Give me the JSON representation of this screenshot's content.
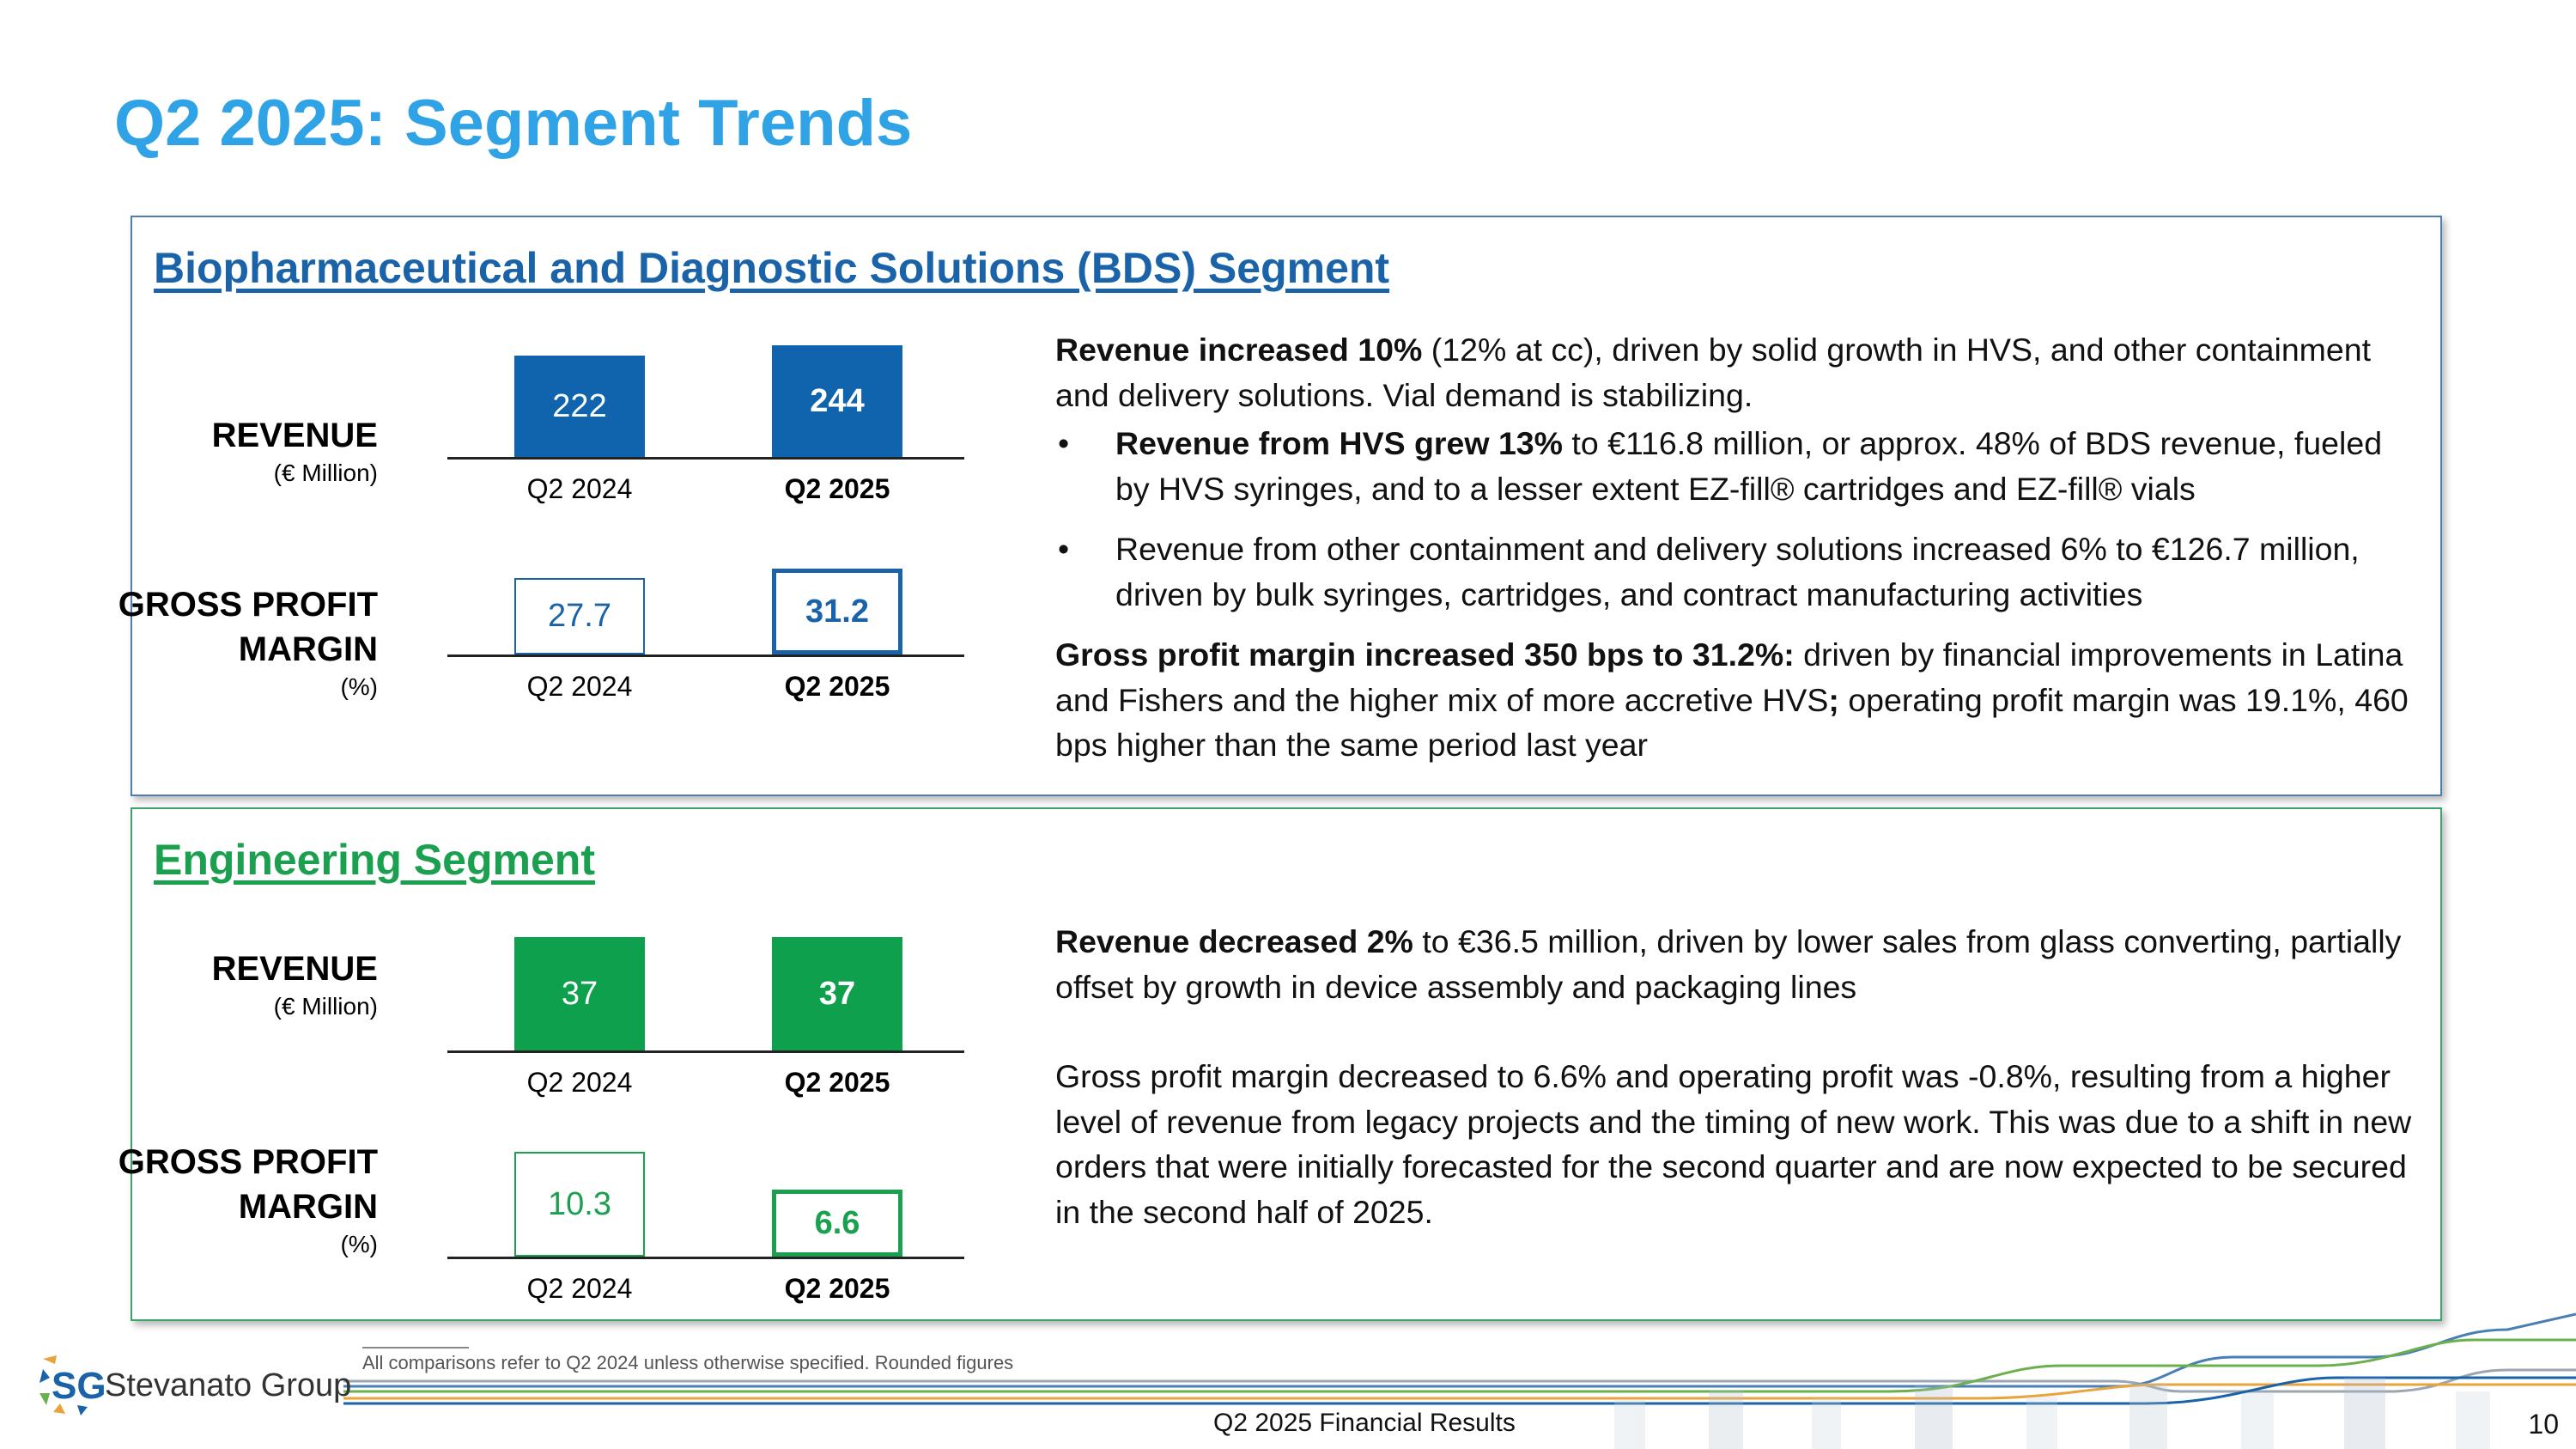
{
  "title": "Q2 2025: Segment Trends",
  "colors": {
    "title_blue": "#2fa3e6",
    "bds_blue": "#0f64ad",
    "eng_green": "#0fa04e"
  },
  "bds": {
    "title": "Biopharmaceutical and Diagnostic Solutions (BDS) Segment",
    "revenue_label": "REVENUE",
    "revenue_unit": "(€ Million)",
    "gpm_label_1": "GROSS PROFIT",
    "gpm_label_2": "MARGIN",
    "gpm_unit": "(%)",
    "revenue_chart": {
      "categories": [
        "Q2 2024",
        "Q2 2025"
      ],
      "values": [
        "222",
        "244"
      ],
      "scale_max": 244
    },
    "gpm_chart": {
      "categories": [
        "Q2 2024",
        "Q2 2025"
      ],
      "values": [
        "27.7",
        "31.2"
      ],
      "scale_max": 31.2
    },
    "text": {
      "p1_bold": "Revenue increased 10%",
      "p1_rest": " (12% at cc), driven by solid growth in HVS, and other containment and delivery solutions. Vial demand is stabilizing.",
      "bullet_char": "•",
      "b1_bold": "Revenue from HVS grew 13%",
      "b1_rest": " to €116.8 million, or approx. 48% of BDS revenue, fueled by HVS syringes, and to a lesser extent EZ-fill® cartridges and EZ-fill® vials",
      "b2": "Revenue from other containment and delivery solutions increased 6% to €126.7 million, driven by bulk syringes, cartridges, and contract manufacturing activities",
      "p2_bold": "Gross profit margin increased 350 bps to 31.2%:",
      "p2_mid": " driven by financial improvements in Latina and Fishers and the higher mix of more accretive HVS",
      "p2_semicolon": ";",
      "p2_rest": " operating profit margin was 19.1%, 460 bps higher than the same period last year"
    }
  },
  "eng": {
    "title": "Engineering Segment",
    "revenue_label": "REVENUE",
    "revenue_unit": "(€ Million)",
    "gpm_label_1": "GROSS PROFIT",
    "gpm_label_2": "MARGIN",
    "gpm_unit": "(%)",
    "revenue_chart": {
      "categories": [
        "Q2 2024",
        "Q2 2025"
      ],
      "values": [
        "37",
        "37"
      ],
      "scale_max": 37
    },
    "gpm_chart": {
      "categories": [
        "Q2 2024",
        "Q2 2025"
      ],
      "values": [
        "10.3",
        "6.6"
      ],
      "scale_max": 10.3
    },
    "text": {
      "p1_bold": "Revenue decreased 2%",
      "p1_rest": " to €36.5 million, driven by lower sales from glass converting, partially offset by growth in device assembly and packaging lines",
      "p2": "Gross profit margin decreased to 6.6% and operating profit was -0.8%, resulting from a higher level of revenue from legacy projects and the timing of new work. This was due to a shift in new orders that were initially forecasted for the second quarter and are now expected to be secured in the second half of 2025."
    }
  },
  "footnote": "All comparisons refer to Q2 2024 unless otherwise specified. Rounded figures",
  "logo": {
    "mark": "SG",
    "name": "Stevanato Group"
  },
  "footer": {
    "label": "Q2 2025 Financial Results",
    "page": "10"
  }
}
